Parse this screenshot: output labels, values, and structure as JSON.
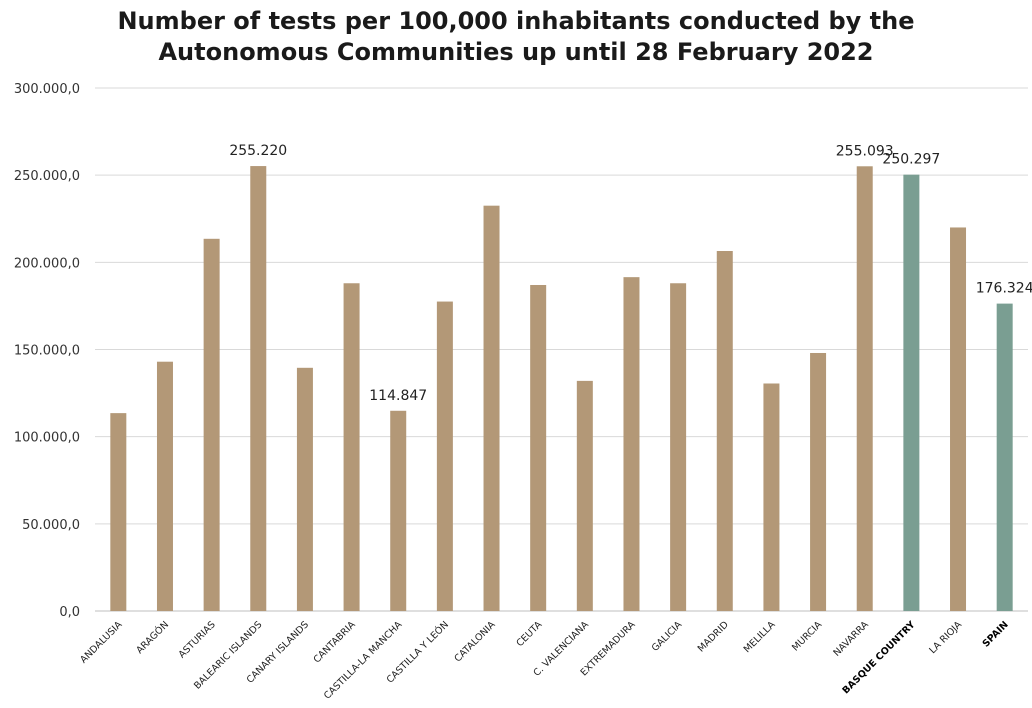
{
  "chart_data": {
    "type": "bar",
    "title_lines": [
      "Number of tests per 100,000 inhabitants conducted by the",
      "Autonomous Communities up until 28 February 2022"
    ],
    "categories": [
      "ANDALUSIA",
      "ARAGÓN",
      "ASTURIAS",
      "BALEARIC ISLANDS",
      "CANARY ISLANDS",
      "CANTABRIA",
      "CASTILLA-LA MANCHA",
      "CASTILLA Y LEÓN",
      "CATALONIA",
      "CEUTA",
      "C. VALENCIANA",
      "EXTREMADURA",
      "GALICIA",
      "MADRID",
      "MELILLA",
      "MURCIA",
      "NAVARRA",
      "BASQUE COUNTRY",
      "LA RIOJA",
      "SPAIN"
    ],
    "values": [
      113500,
      143000,
      213500,
      255220,
      139500,
      188000,
      114847,
      177500,
      232500,
      187000,
      132000,
      191500,
      188000,
      206500,
      130500,
      148000,
      255093,
      250297,
      220000,
      176324
    ],
    "colors": [
      "#b39877",
      "#b39877",
      "#b39877",
      "#b39877",
      "#b39877",
      "#b39877",
      "#b39877",
      "#b39877",
      "#b39877",
      "#b39877",
      "#b39877",
      "#b39877",
      "#b39877",
      "#b39877",
      "#b39877",
      "#b39877",
      "#b39877",
      "#7a9e92",
      "#b39877",
      "#7a9e92"
    ],
    "bold_categories": [
      "BASQUE COUNTRY",
      "SPAIN"
    ],
    "data_labels": [
      {
        "index": 3,
        "text": "255.220"
      },
      {
        "index": 6,
        "text": "114.847"
      },
      {
        "index": 16,
        "text": "255.093"
      },
      {
        "index": 17,
        "text": "250.297"
      },
      {
        "index": 19,
        "text": "176.324"
      }
    ],
    "yticks": [
      0,
      50000,
      100000,
      150000,
      200000,
      250000,
      300000
    ],
    "ytick_labels": [
      "0,0",
      "50.000,0",
      "100.000,0",
      "150.000,0",
      "200.000,0",
      "250.000,0",
      "300.000,0"
    ],
    "ylim": [
      0,
      300000
    ],
    "grid": true,
    "xlabel": "",
    "ylabel": ""
  }
}
